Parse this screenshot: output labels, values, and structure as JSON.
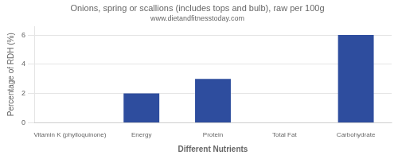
{
  "chart_data": {
    "type": "bar",
    "title": "Onions, spring or scallions (includes tops and bulb), raw per 100g",
    "subtitle": "www.dietandfitnesstoday.com",
    "xlabel": "Different Nutrients",
    "ylabel": "Percentage of RDH (%)",
    "categories": [
      "Vitamin K (phylloquinone)",
      "Energy",
      "Protein",
      "Total Fat",
      "Carbohydrate"
    ],
    "values": [
      0,
      2.0,
      3.0,
      0,
      6.0
    ],
    "color": "#2e4d9e",
    "ylim": [
      0,
      6.6
    ],
    "yticks": [
      0,
      2,
      4,
      6
    ],
    "grid": true
  }
}
